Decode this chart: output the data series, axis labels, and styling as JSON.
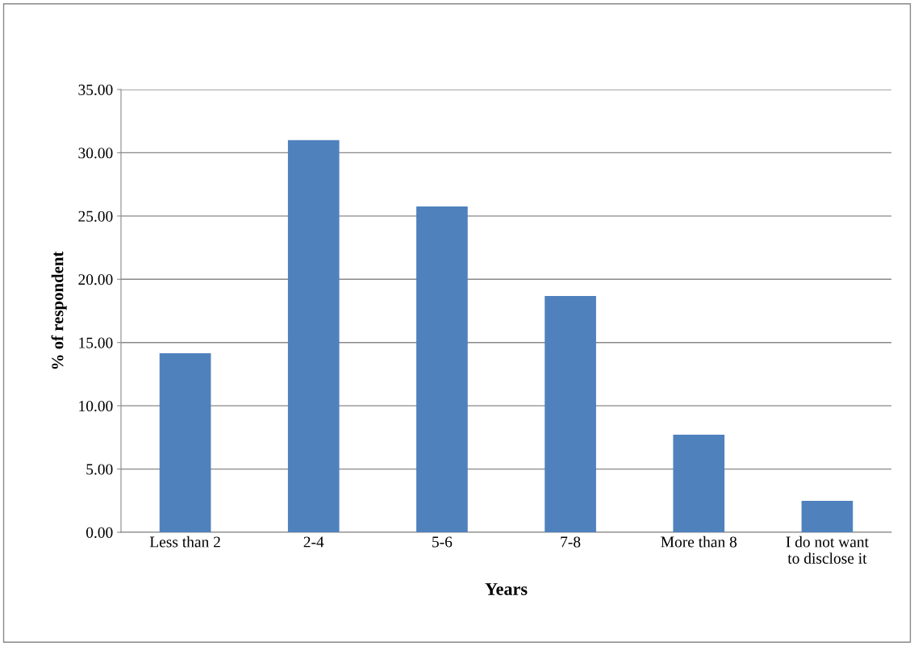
{
  "chart_data": {
    "type": "bar",
    "xlabel": "Years",
    "ylabel": "% of respondent",
    "categories": [
      "Less than 2",
      "2-4",
      "5-6",
      "7-8",
      "More than 8",
      "I do not want\nto disclose it"
    ],
    "values": [
      14.15,
      31.0,
      25.76,
      18.68,
      7.71,
      2.49
    ],
    "color": "#4f81bd",
    "ylim": [
      0,
      35
    ],
    "yticks": [
      {
        "value": 0,
        "label": "0.00"
      },
      {
        "value": 5,
        "label": "5.00"
      },
      {
        "value": 10,
        "label": "10.00"
      },
      {
        "value": 15,
        "label": "15.00"
      },
      {
        "value": 20,
        "label": "20.00"
      },
      {
        "value": 25,
        "label": "25.00"
      },
      {
        "value": 30,
        "label": "30.00"
      },
      {
        "value": 35,
        "label": "35.00"
      }
    ],
    "grid": "y",
    "legend": false
  }
}
